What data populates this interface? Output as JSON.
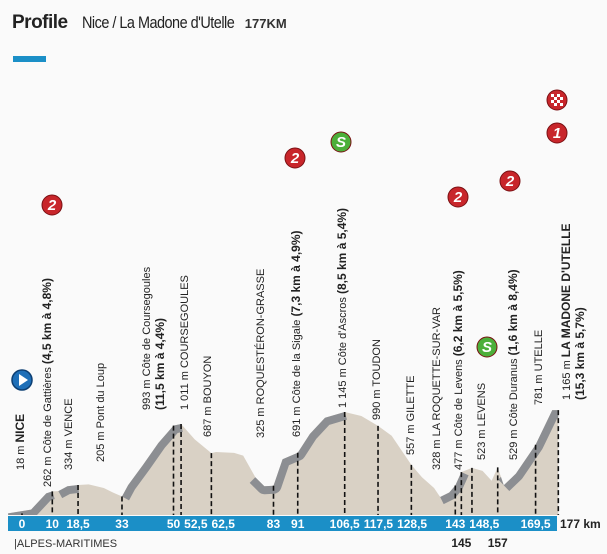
{
  "header": {
    "title": "Profile",
    "stage": "Nice / La Madone d'Utelle",
    "distance": "177KM"
  },
  "colors": {
    "accent": "#1b8fc7",
    "terrain": "#d9d1c5",
    "climb": "#8c8e92",
    "kom": "#c8262b",
    "sprint": "#4caf3a",
    "start": "#1e6fb8"
  },
  "chart_data": {
    "type": "area",
    "x_unit": "km",
    "y_unit": "m",
    "xlim": [
      0,
      177
    ],
    "end_label": "177 km",
    "region": "|ALPES-MARITIMES",
    "ticks_top": [
      "0",
      "10",
      "18,5",
      "33",
      "50",
      "52,5",
      "62,5",
      "83",
      "91",
      "106,5",
      "117,5",
      "128,5",
      "143",
      "148,5",
      "169,5"
    ],
    "ticks_top_km": [
      0,
      10,
      18.5,
      33,
      50,
      52.5,
      62.5,
      83,
      91,
      106.5,
      117.5,
      128.5,
      143,
      148.5,
      169.5
    ],
    "ticks_bottom": [
      "145",
      "157"
    ],
    "ticks_bottom_km": [
      145,
      157
    ],
    "profile_km": [
      0,
      3,
      8,
      10,
      12,
      15,
      18.5,
      22,
      27,
      30,
      33,
      35,
      40,
      45,
      50,
      52.5,
      57,
      62.5,
      64,
      70,
      73,
      77,
      80,
      83,
      86,
      91,
      95,
      100,
      106.5,
      112,
      117.5,
      122,
      128.5,
      132,
      136,
      138,
      141,
      143,
      145,
      148.5,
      152,
      155,
      157,
      159,
      163,
      169.5,
      175,
      177
    ],
    "profile_elev": [
      18,
      60,
      240,
      262,
      265,
      320,
      334,
      340,
      300,
      250,
      205,
      330,
      560,
      800,
      993,
      1011,
      840,
      687,
      700,
      690,
      660,
      420,
      320,
      325,
      620,
      691,
      900,
      1080,
      1145,
      1100,
      990,
      880,
      557,
      420,
      300,
      200,
      250,
      328,
      477,
      523,
      490,
      380,
      529,
      330,
      460,
      781,
      1165,
      1165
    ],
    "points": [
      {
        "km": 0,
        "text": "18 m ",
        "bold": "NICE",
        "icon": "start"
      },
      {
        "km": 10,
        "text": "262 m Côte de Gattières ",
        "bold": "(4,5 km à 4,8%)",
        "icon": "kom-2"
      },
      {
        "km": 18.5,
        "text": "334 m VENCE"
      },
      {
        "km": 33,
        "text": "205 m Pont du Loup"
      },
      {
        "km": 50,
        "text": "993 m Côte de Coursegoules",
        "bold2": "(11,5 km à 4,4%)",
        "icon": "kom-2"
      },
      {
        "km": 52.5,
        "text": "1 011 m COURSEGOULES",
        "icon": "sprint"
      },
      {
        "km": 62.5,
        "text": "687 m BOUYON"
      },
      {
        "km": 83,
        "text": "325 m ROQUESTÉRON-GRASSE"
      },
      {
        "km": 91,
        "text": "691 m Côte de la Sigale ",
        "bold": "(7,3 km à 4,9%)",
        "icon": "kom-2"
      },
      {
        "km": 106.5,
        "text": "1 145 m Côte d'Ascros ",
        "bold": "(8,5 km à 5,4%)",
        "icon": "kom-1"
      },
      {
        "km": 117.5,
        "text": "990 m TOUDON"
      },
      {
        "km": 128.5,
        "text": "557 m GILETTE"
      },
      {
        "km": 143,
        "text": "328 m LA ROQUETTE-SUR-VAR"
      },
      {
        "km": 145,
        "text": "477 m Côte de Levens ",
        "bold": "(6,2 km à 5,5%)",
        "icon": "kom-2"
      },
      {
        "km": 148.5,
        "text": "523 m LEVENS",
        "icon": "sprint"
      },
      {
        "km": 157,
        "text": "529 m Côte Duranus ",
        "bold": "(1,6 km à 8,4%)",
        "icon": "kom-2"
      },
      {
        "km": 169.5,
        "text": "781 m UTELLE"
      },
      {
        "km": 177,
        "text": "1 165 m ",
        "bold": "LA MADONE D'UTELLE",
        "bold2": "(15,3 km à 5,7%)",
        "icon": "kom-1-finish"
      }
    ],
    "icon_labels": {
      "kom-1": "1",
      "kom-2": "2",
      "sprint": "S"
    }
  }
}
